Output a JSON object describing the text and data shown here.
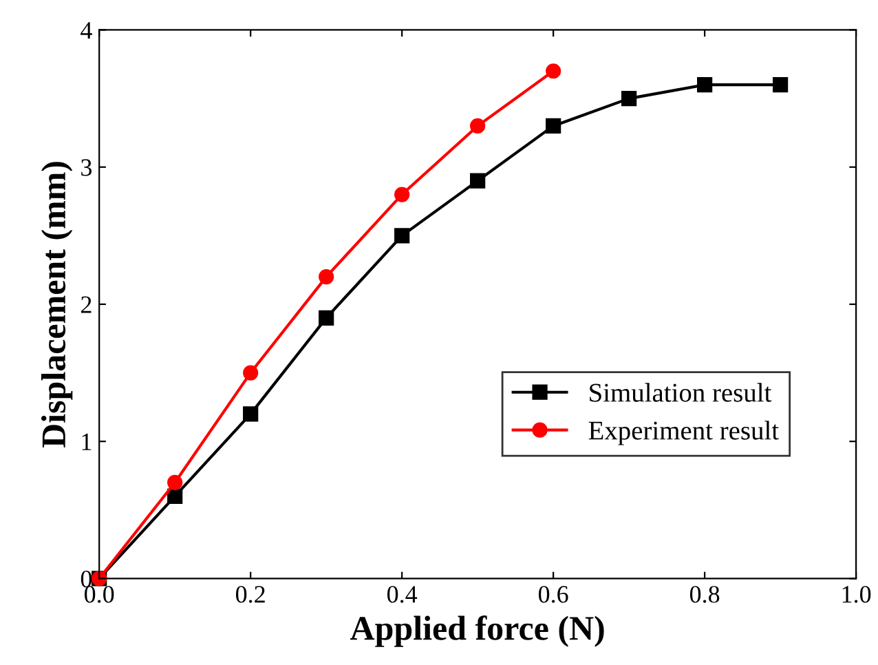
{
  "chart_data": {
    "type": "line",
    "xlabel": "Applied force (N)",
    "ylabel": "Displacement (mm)",
    "xlim": [
      0,
      1.0
    ],
    "ylim": [
      0,
      4
    ],
    "xticks": [
      {
        "value": 0,
        "label": "0.0"
      },
      {
        "value": 0.2,
        "label": "0.2"
      },
      {
        "value": 0.4,
        "label": "0.4"
      },
      {
        "value": 0.6,
        "label": "0.6"
      },
      {
        "value": 0.8,
        "label": "0.8"
      },
      {
        "value": 1.0,
        "label": "1.0"
      }
    ],
    "yticks": [
      0,
      1,
      2,
      3,
      4
    ],
    "grid": false,
    "legend": "center right",
    "series": [
      {
        "name": "Simulation result",
        "color": "#000000",
        "marker": "square",
        "x": [
          0,
          0.1,
          0.2,
          0.3,
          0.4,
          0.5,
          0.6,
          0.7,
          0.8,
          0.9
        ],
        "values": [
          0,
          0.6,
          1.2,
          1.9,
          2.5,
          2.9,
          3.3,
          3.5,
          3.6,
          3.6
        ]
      },
      {
        "name": "Experiment result",
        "color": "#ff0000",
        "marker": "circle",
        "x": [
          0,
          0.1,
          0.2,
          0.3,
          0.4,
          0.5,
          0.6
        ],
        "values": [
          0,
          0.7,
          1.5,
          2.2,
          2.8,
          3.3,
          3.7
        ]
      }
    ]
  }
}
